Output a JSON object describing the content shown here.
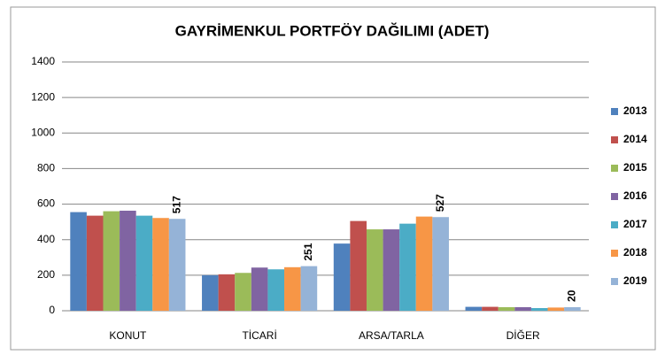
{
  "chart_data": {
    "type": "bar",
    "title": "GAYRİMENKUL PORTFÖY DAĞILIMI (ADET)",
    "categories": [
      "KONUT",
      "TİCARİ",
      "ARSA/TARLA",
      "DİĞER"
    ],
    "series": [
      {
        "name": "2013",
        "color": "#4f81bd",
        "values": [
          555,
          200,
          378,
          22
        ]
      },
      {
        "name": "2014",
        "color": "#c0504d",
        "values": [
          535,
          205,
          505,
          22
        ]
      },
      {
        "name": "2015",
        "color": "#9bbb59",
        "values": [
          560,
          213,
          458,
          20
        ]
      },
      {
        "name": "2016",
        "color": "#8064a2",
        "values": [
          563,
          243,
          458,
          20
        ]
      },
      {
        "name": "2017",
        "color": "#4bacc6",
        "values": [
          535,
          233,
          490,
          15
        ]
      },
      {
        "name": "2018",
        "color": "#f79646",
        "values": [
          522,
          245,
          530,
          18
        ]
      },
      {
        "name": "2019",
        "color": "#95b3d7",
        "values": [
          517,
          251,
          527,
          20
        ],
        "show_labels": true
      }
    ],
    "ylim": [
      0,
      1400
    ],
    "yticks": [
      0,
      200,
      400,
      600,
      800,
      1000,
      1200,
      1400
    ],
    "grid": true,
    "legend": "right"
  }
}
